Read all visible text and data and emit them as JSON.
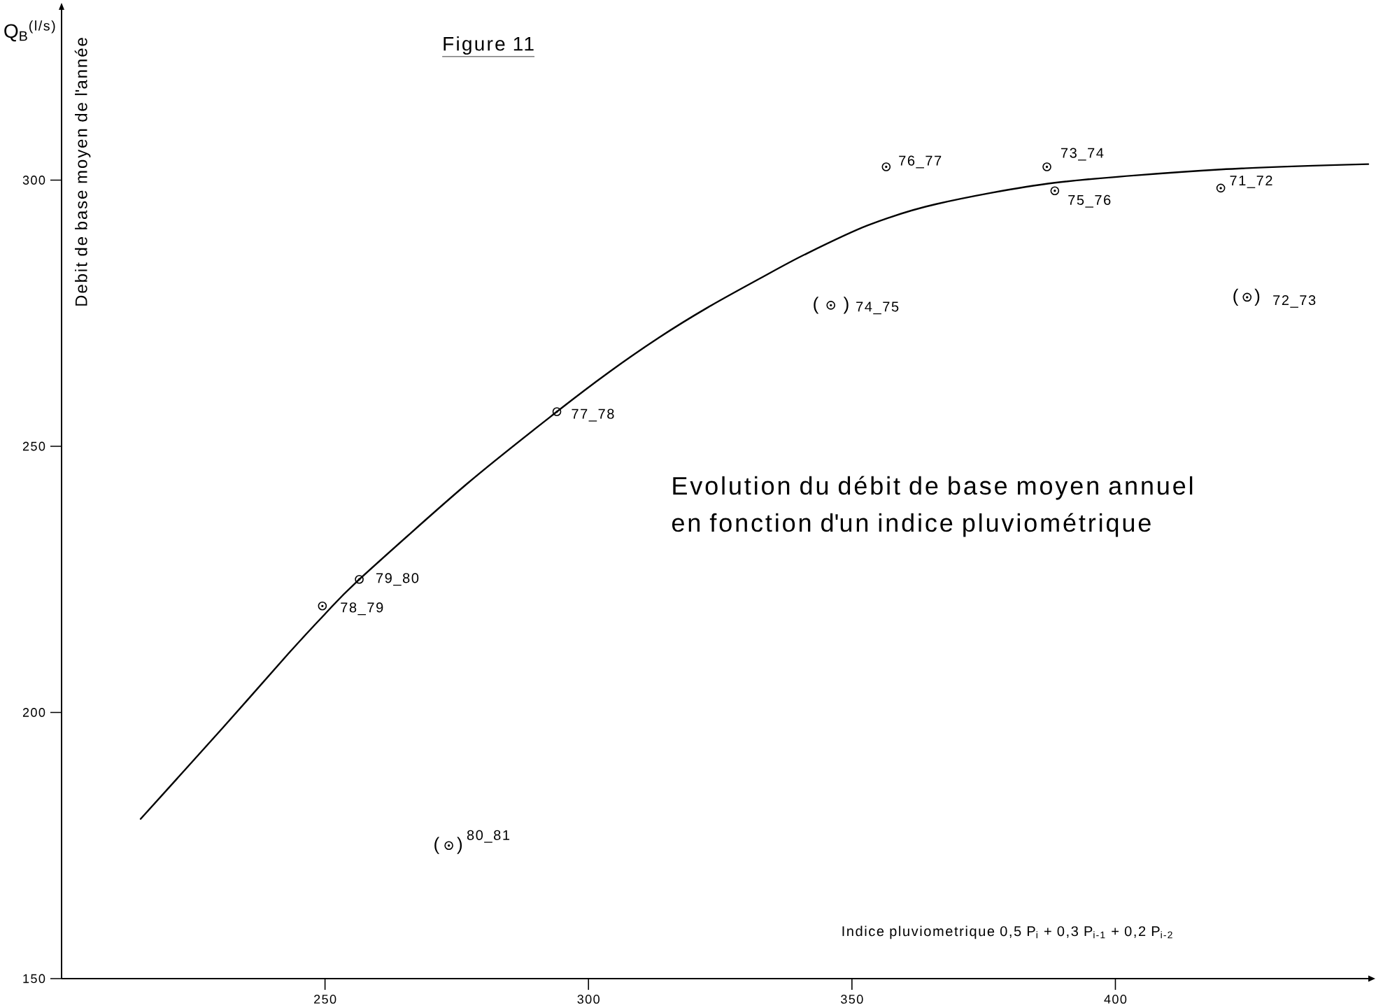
{
  "chart_data": {
    "type": "scatter",
    "title": "Figure 11",
    "subtitle": "Evolution du débit de base moyen annuel en fonction d'un indice pluviométrique",
    "xlabel": "Indice pluviometrique 0,5 P$_{i}$ + 0,3 P$_{i-1}$ + 0,2 P$_{i-2}$",
    "ylabel": "Debit de base moyen de l'année",
    "xlim": [
      200,
      448
    ],
    "ylim": [
      150,
      332
    ],
    "xticks": [
      250,
      300,
      350,
      400
    ],
    "yticks": [
      150,
      200,
      250,
      300
    ],
    "series": [
      {
        "color": "#000000",
        "marker": "circle",
        "x": [
          249.5,
          256.5,
          273.5,
          294,
          346,
          356.5,
          387,
          388.5,
          420,
          425
        ],
        "values": [
          220,
          225,
          175,
          256.5,
          276.5,
          302.5,
          302.5,
          298,
          298.5,
          278
        ]
      },
      {
        "type": "line",
        "color": "#000000",
        "marker": "none",
        "line_style": "solid",
        "x": [
          215,
          230.5,
          243,
          250,
          256.5,
          277,
          294,
          304,
          313.5,
          322.5,
          332.5,
          341,
          353,
          366,
          388.5,
          420,
          448
        ],
        "values": [
          180,
          197,
          211,
          218.5,
          225,
          243,
          256.5,
          264,
          270.5,
          276,
          281.5,
          286,
          291.5,
          295.5,
          299.5,
          302,
          303
        ]
      }
    ],
    "annotations": [
      "Q$_{B}$$^{(l/s)}$",
      {
        "text": "76_77",
        "x": 356.5,
        "y": 302.5
      },
      {
        "text": "73_74",
        "x": 387,
        "y": 302.5
      },
      {
        "text": "75_76",
        "x": 388.5,
        "y": 298
      },
      {
        "text": "71_72",
        "x": 420,
        "y": 298.5
      },
      {
        "text": "(",
        "x": 346,
        "y": 276.5
      },
      {
        "text": ")",
        "x": 346,
        "y": 276.5
      },
      {
        "text": "74_75",
        "x": 346,
        "y": 276.5
      },
      {
        "text": "(",
        "x": 425,
        "y": 278
      },
      {
        "text": ")",
        "x": 425,
        "y": 278
      },
      {
        "text": "72_73",
        "x": 425,
        "y": 278
      },
      {
        "text": "77_78",
        "x": 294,
        "y": 256.5
      },
      {
        "text": "79_80",
        "x": 256.5,
        "y": 225
      },
      {
        "text": "78_79",
        "x": 249.5,
        "y": 220
      },
      {
        "text": "(",
        "x": 273.5,
        "y": 175
      },
      {
        "text": ")",
        "x": 273.5,
        "y": 175
      },
      {
        "text": "80_81",
        "x": 273.5,
        "y": 175
      }
    ]
  }
}
